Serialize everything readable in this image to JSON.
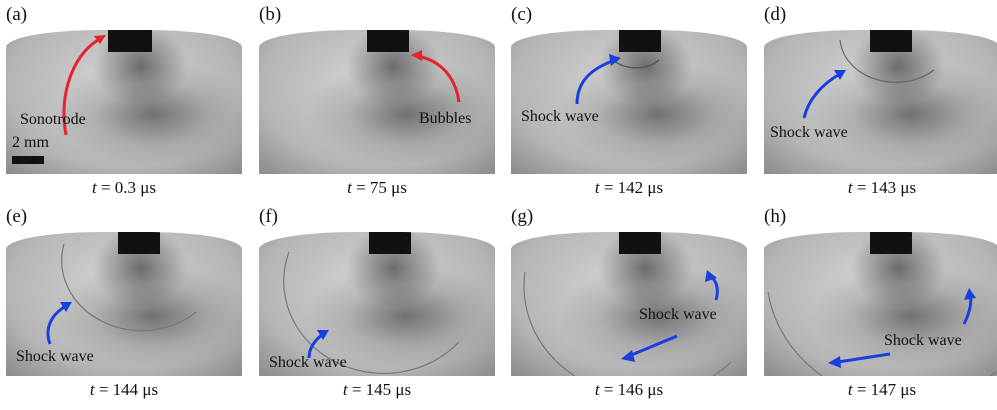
{
  "panels": [
    {
      "letter": "(a)",
      "time_var": "t",
      "time_value": "= 0.3 μs",
      "annotations": [
        "Sonotrode"
      ],
      "scale_label": "2 mm",
      "arrow_color": "#e8222a"
    },
    {
      "letter": "(b)",
      "time_var": "t",
      "time_value": "= 75 μs",
      "annotations": [
        "Bubbles"
      ],
      "arrow_color": "#e8222a"
    },
    {
      "letter": "(c)",
      "time_var": "t",
      "time_value": "= 142 μs",
      "annotations": [
        "Shock wave"
      ],
      "arrow_color": "#1a3fe0"
    },
    {
      "letter": "(d)",
      "time_var": "t",
      "time_value": "= 143 μs",
      "annotations": [
        "Shock wave"
      ],
      "arrow_color": "#1a3fe0"
    },
    {
      "letter": "(e)",
      "time_var": "t",
      "time_value": "= 144 μs",
      "annotations": [
        "Shock wave"
      ],
      "arrow_color": "#1a3fe0"
    },
    {
      "letter": "(f)",
      "time_var": "t",
      "time_value": "= 145 μs",
      "annotations": [
        "Shock wave"
      ],
      "arrow_color": "#1a3fe0"
    },
    {
      "letter": "(g)",
      "time_var": "t",
      "time_value": "= 146 μs",
      "annotations": [
        "Shock wave"
      ],
      "arrow_color": "#1a3fe0"
    },
    {
      "letter": "(h)",
      "time_var": "t",
      "time_value": "= 147 μs",
      "annotations": [
        "Shock wave"
      ],
      "arrow_color": "#1a3fe0"
    }
  ]
}
